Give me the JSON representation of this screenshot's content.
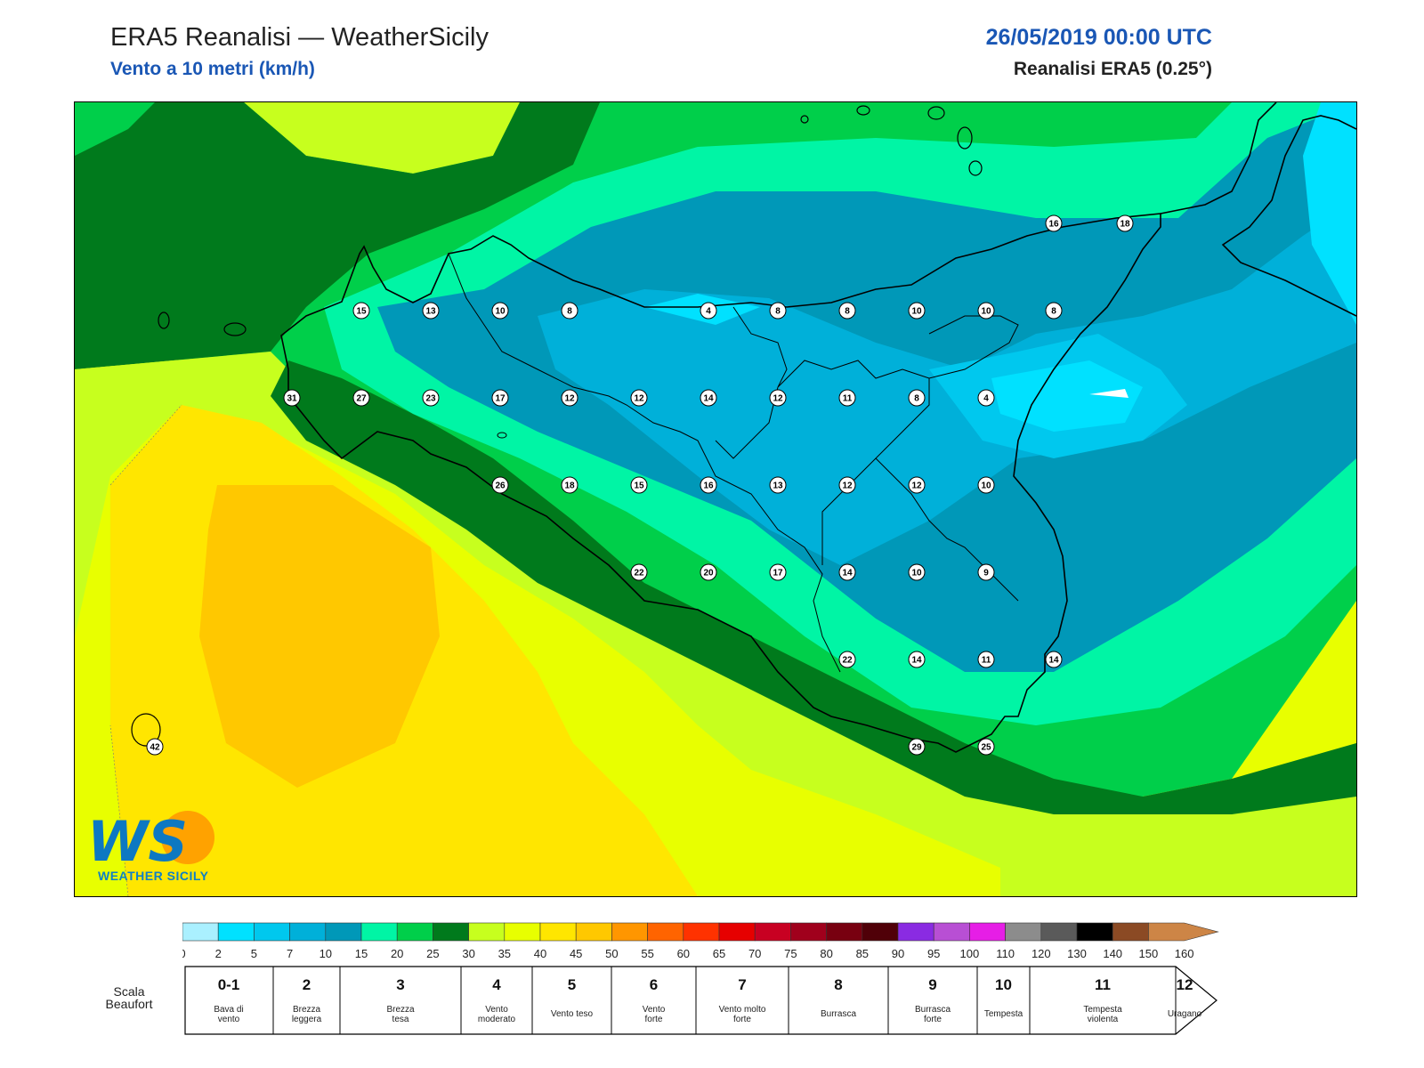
{
  "header": {
    "title": "ERA5 Reanalisi — WeatherSicily",
    "subtitle": "Vento a 10 metri (km/h)",
    "datetime": "26/05/2019 00:00 UTC",
    "source": "Reanalisi ERA5 (0.25°)"
  },
  "colors": {
    "title_blue": "#1a57b5",
    "scale": [
      "#aaf0ff",
      "#00e1ff",
      "#00c8ee",
      "#00b0d9",
      "#0098b8",
      "#00f5a5",
      "#00cf4a",
      "#007a1c",
      "#c7ff1e",
      "#e8ff00",
      "#ffe600",
      "#ffc800",
      "#ff9600",
      "#ff6400",
      "#ff3200",
      "#e60000",
      "#c80022",
      "#a0001c",
      "#780010",
      "#500008",
      "#8a2be2",
      "#b84fd4",
      "#e61ee6",
      "#8c8c8c",
      "#5a5a5a",
      "#000000",
      "#8b4a24",
      "#cd8546"
    ]
  },
  "map": {
    "stations": [
      {
        "value": "16"
      },
      {
        "value": "18"
      },
      {
        "value": "15"
      },
      {
        "value": "13"
      },
      {
        "value": "10"
      },
      {
        "value": "8"
      },
      {
        "value": "4"
      },
      {
        "value": "8"
      },
      {
        "value": "8"
      },
      {
        "value": "10"
      },
      {
        "value": "10"
      },
      {
        "value": "8"
      },
      {
        "value": "31"
      },
      {
        "value": "27"
      },
      {
        "value": "23"
      },
      {
        "value": "17"
      },
      {
        "value": "12"
      },
      {
        "value": "12"
      },
      {
        "value": "14"
      },
      {
        "value": "12"
      },
      {
        "value": "11"
      },
      {
        "value": "8"
      },
      {
        "value": "4"
      },
      {
        "value": "26"
      },
      {
        "value": "18"
      },
      {
        "value": "15"
      },
      {
        "value": "16"
      },
      {
        "value": "13"
      },
      {
        "value": "12"
      },
      {
        "value": "12"
      },
      {
        "value": "10"
      },
      {
        "value": "22"
      },
      {
        "value": "20"
      },
      {
        "value": "17"
      },
      {
        "value": "14"
      },
      {
        "value": "10"
      },
      {
        "value": "9"
      },
      {
        "value": "22"
      },
      {
        "value": "14"
      },
      {
        "value": "11"
      },
      {
        "value": "14"
      },
      {
        "value": "29"
      },
      {
        "value": "25"
      },
      {
        "value": "42"
      }
    ]
  },
  "logo": {
    "letters": "WS",
    "text": "WEATHER SICILY"
  },
  "colorbar": {
    "ticks": [
      "0",
      "2",
      "5",
      "7",
      "10",
      "15",
      "20",
      "25",
      "30",
      "35",
      "40",
      "45",
      "50",
      "55",
      "60",
      "65",
      "70",
      "75",
      "80",
      "85",
      "90",
      "95",
      "100",
      "110",
      "120",
      "130",
      "140",
      "150",
      "160"
    ]
  },
  "beaufort": {
    "label_line1": "Scala",
    "label_line2": "Beaufort",
    "classes": [
      {
        "num": "0-1",
        "name": [
          "Bava di",
          "vento"
        ]
      },
      {
        "num": "2",
        "name": [
          "Brezza",
          "leggera"
        ]
      },
      {
        "num": "3",
        "name": [
          "Brezza",
          "tesa"
        ]
      },
      {
        "num": "4",
        "name": [
          "Vento",
          "moderato"
        ]
      },
      {
        "num": "5",
        "name": [
          "Vento teso"
        ]
      },
      {
        "num": "6",
        "name": [
          "Vento",
          "forte"
        ]
      },
      {
        "num": "7",
        "name": [
          "Vento molto",
          "forte"
        ]
      },
      {
        "num": "8",
        "name": [
          "Burrasca"
        ]
      },
      {
        "num": "9",
        "name": [
          "Burrasca",
          "forte"
        ]
      },
      {
        "num": "10",
        "name": [
          "Tempesta"
        ]
      },
      {
        "num": "11",
        "name": [
          "Tempesta",
          "violenta"
        ]
      },
      {
        "num": "12",
        "name": [
          "Uragano"
        ]
      }
    ]
  }
}
